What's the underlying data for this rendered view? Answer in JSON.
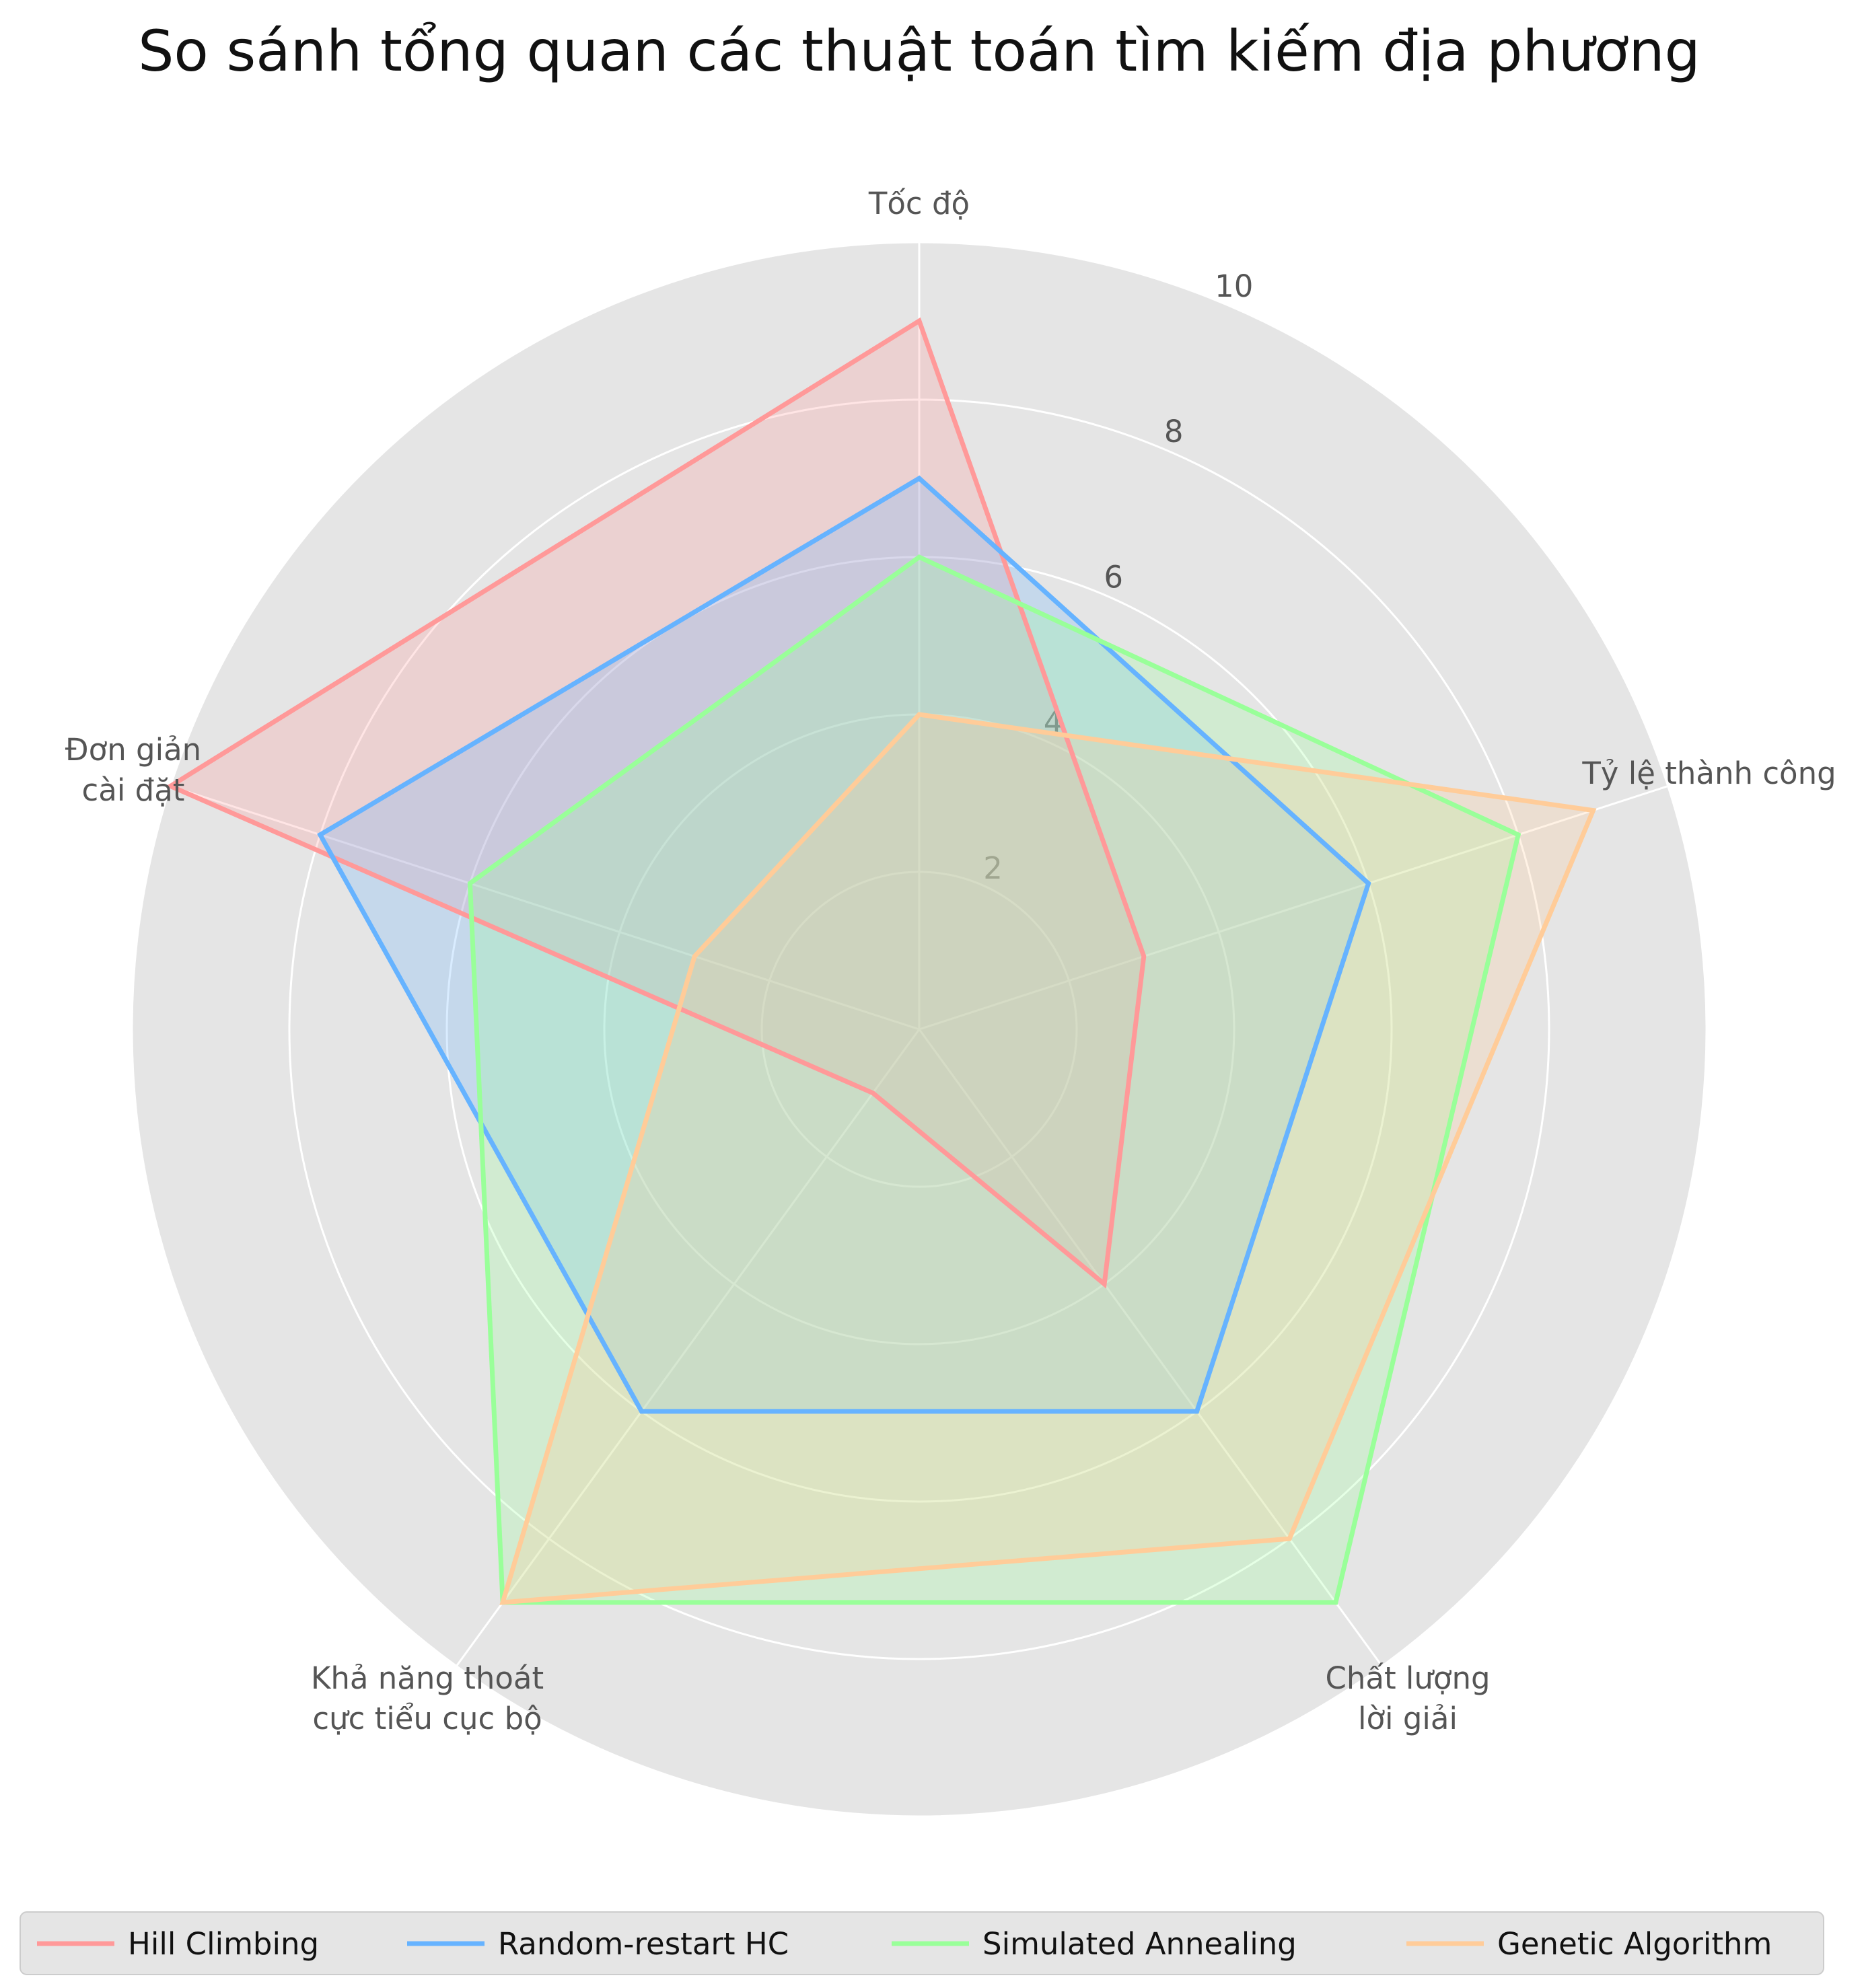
{
  "chart_data": {
    "type": "radar",
    "title": "So sánh tổng quan các thuật toán tìm kiếm địa phương",
    "axes": [
      [
        "Tốc độ"
      ],
      [
        "Tỷ lệ thành công"
      ],
      [
        "Chất lượng",
        "lời giải"
      ],
      [
        "Khả năng thoát",
        "cực tiểu cục bộ"
      ],
      [
        "Đơn giản",
        "cài đặt"
      ]
    ],
    "rlim": [
      0,
      10
    ],
    "rticks": [
      2,
      4,
      6,
      8,
      10
    ],
    "grid": true,
    "legend_position": "bottom",
    "series": [
      {
        "name": "Hill Climbing",
        "values": [
          9,
          3,
          4,
          1,
          10
        ],
        "color": "#ff9999"
      },
      {
        "name": "Random-restart HC",
        "values": [
          7,
          6,
          6,
          6,
          8
        ],
        "color": "#66b3ff"
      },
      {
        "name": "Simulated Annealing",
        "values": [
          6,
          8,
          9,
          9,
          6
        ],
        "color": "#99ff99"
      },
      {
        "name": "Genetic Algorithm",
        "values": [
          4,
          9,
          8,
          9,
          3
        ],
        "color": "#ffcc99"
      }
    ]
  }
}
